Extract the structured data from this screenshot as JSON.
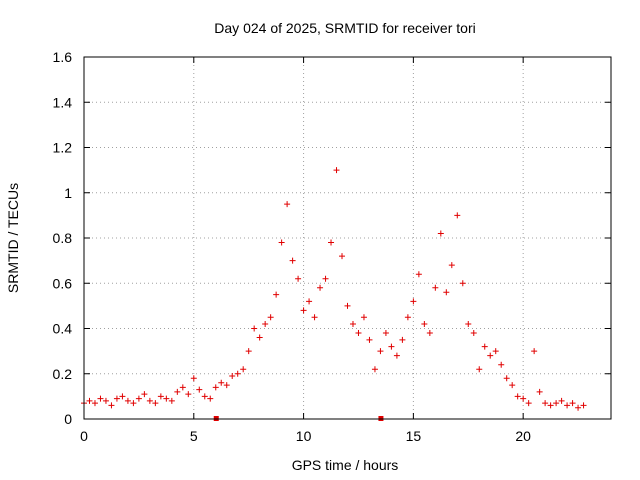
{
  "chart_data": {
    "type": "scatter",
    "title": "Day 024 of 2025, SRMTID for receiver tori",
    "xlabel": "GPS time / hours",
    "ylabel": "SRMTID / TECUs",
    "xlim": [
      0,
      24
    ],
    "ylim": [
      0,
      1.6
    ],
    "xticks": [
      "0",
      "5",
      "10",
      "15",
      "20"
    ],
    "yticks": [
      "0",
      "0.2",
      "0.4",
      "0.6",
      "0.8",
      "1",
      "1.2",
      "1.4",
      "1.6"
    ],
    "grid": true,
    "marker": "plus",
    "color": "#e00000",
    "series": [
      {
        "name": "SRMTID",
        "x": [
          0.0,
          0.25,
          0.5,
          0.75,
          1.0,
          1.25,
          1.5,
          1.75,
          2.0,
          2.25,
          2.5,
          2.75,
          3.0,
          3.25,
          3.5,
          3.75,
          4.0,
          4.25,
          4.5,
          4.75,
          5.0,
          5.25,
          5.5,
          5.75,
          6.0,
          6.25,
          6.5,
          6.75,
          7.0,
          7.25,
          7.5,
          7.75,
          8.0,
          8.25,
          8.5,
          8.75,
          9.0,
          9.25,
          9.5,
          9.75,
          10.0,
          10.25,
          10.5,
          10.75,
          11.0,
          11.25,
          11.5,
          11.75,
          12.0,
          12.25,
          12.5,
          12.75,
          13.0,
          13.25,
          13.5,
          13.75,
          14.0,
          14.25,
          14.5,
          14.75,
          15.0,
          15.25,
          15.5,
          15.75,
          16.0,
          16.25,
          16.5,
          16.75,
          17.0,
          17.25,
          17.5,
          17.75,
          18.0,
          18.25,
          18.5,
          18.75,
          19.0,
          19.25,
          19.5,
          19.75,
          20.0,
          20.25,
          20.5,
          20.75,
          21.0,
          21.25,
          21.5,
          21.75,
          22.0,
          22.25,
          22.5,
          22.75
        ],
        "y": [
          0.07,
          0.08,
          0.07,
          0.09,
          0.08,
          0.06,
          0.09,
          0.1,
          0.08,
          0.07,
          0.09,
          0.11,
          0.08,
          0.07,
          0.1,
          0.09,
          0.08,
          0.12,
          0.14,
          0.11,
          0.18,
          0.13,
          0.1,
          0.09,
          0.14,
          0.16,
          0.15,
          0.19,
          0.2,
          0.22,
          0.3,
          0.4,
          0.36,
          0.42,
          0.45,
          0.55,
          0.78,
          0.95,
          0.7,
          0.62,
          0.48,
          0.52,
          0.45,
          0.58,
          0.62,
          0.78,
          1.1,
          0.72,
          0.5,
          0.42,
          0.38,
          0.45,
          0.35,
          0.22,
          0.3,
          0.38,
          0.32,
          0.28,
          0.35,
          0.45,
          0.52,
          0.64,
          0.42,
          0.38,
          0.58,
          0.82,
          0.56,
          0.68,
          0.9,
          0.6,
          0.42,
          0.38,
          0.22,
          0.32,
          0.28,
          0.3,
          0.24,
          0.18,
          0.15,
          0.1,
          0.09,
          0.07,
          0.3,
          0.12,
          0.07,
          0.06,
          0.07,
          0.08,
          0.06,
          0.07,
          0.05,
          0.06
        ]
      }
    ],
    "rug_marks": [
      6.0,
      13.5
    ]
  }
}
